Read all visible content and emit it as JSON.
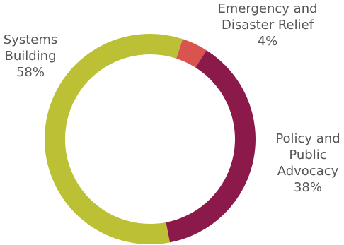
{
  "chart_data": {
    "type": "pie",
    "title": "",
    "donut": true,
    "legend": "none",
    "slices": [
      {
        "label_lines": [
          "Emergency and",
          "Disaster Relief"
        ],
        "value": 4,
        "value_label": "4%",
        "color": "#d9534f"
      },
      {
        "label_lines": [
          "Policy and",
          "Public",
          "Advocacy"
        ],
        "value": 38,
        "value_label": "38%",
        "color": "#8b1a4a"
      },
      {
        "label_lines": [
          "Systems",
          "Building"
        ],
        "value": 58,
        "value_label": "58%",
        "color": "#bcc034"
      }
    ]
  }
}
